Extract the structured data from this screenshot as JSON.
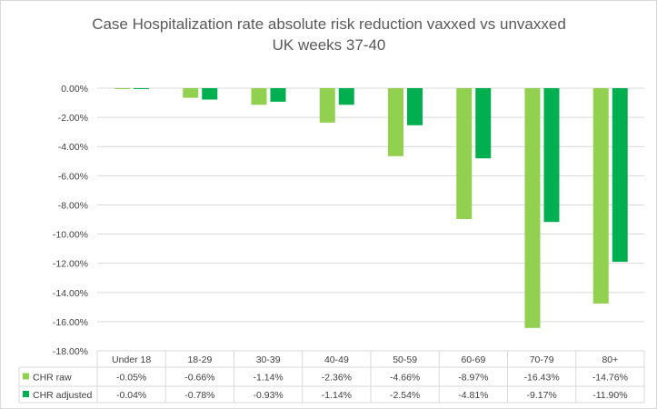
{
  "chart_data": {
    "type": "bar",
    "title": "Case Hospitalization rate absolute risk reduction vaxxed vs unvaxxed",
    "subtitle": "UK weeks 37-40",
    "xlabel": "",
    "ylabel": "",
    "ylim": [
      -18,
      0
    ],
    "ytick_step": 2,
    "yticks": [
      "0.00%",
      "-2.00%",
      "-4.00%",
      "-6.00%",
      "-8.00%",
      "-10.00%",
      "-12.00%",
      "-14.00%",
      "-16.00%",
      "-18.00%"
    ],
    "grid": true,
    "legend": "data-table",
    "categories": [
      "Under 18",
      "18-29",
      "30-39",
      "40-49",
      "50-59",
      "60-69",
      "70-79",
      "80+"
    ],
    "series": [
      {
        "name": "CHR raw",
        "color": "#92D050",
        "values": [
          -0.05,
          -0.66,
          -1.14,
          -2.36,
          -4.66,
          -8.97,
          -16.43,
          -14.76
        ],
        "labels": [
          "-0.05%",
          "-0.66%",
          "-1.14%",
          "-2.36%",
          "-4.66%",
          "-8.97%",
          "-16.43%",
          "-14.76%"
        ]
      },
      {
        "name": "CHR adjusted",
        "color": "#00B050",
        "values": [
          -0.04,
          -0.78,
          -0.93,
          -1.14,
          -2.54,
          -4.81,
          -9.17,
          -11.9
        ],
        "labels": [
          "-0.04%",
          "-0.78%",
          "-0.93%",
          "-1.14%",
          "-2.54%",
          "-4.81%",
          "-9.17%",
          "-11.90%"
        ]
      }
    ]
  }
}
